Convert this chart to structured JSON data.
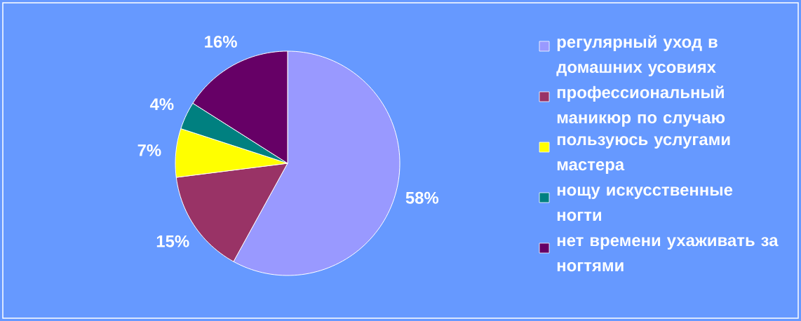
{
  "chart_data": {
    "type": "pie",
    "categories": [
      "регулярный уход в домашних усовиях",
      "профессиональный маникюр по случаю",
      "пользуюсь услугами мастера",
      "нощу искусственные ногти",
      "нет времени ухаживать за ногтями"
    ],
    "values": [
      58,
      15,
      7,
      4,
      16
    ],
    "value_labels": [
      "58%",
      "15%",
      "7%",
      "4%",
      "16%"
    ],
    "colors": [
      "#9999ff",
      "#993366",
      "#ffff00",
      "#008080",
      "#660066"
    ],
    "legend": "right"
  }
}
